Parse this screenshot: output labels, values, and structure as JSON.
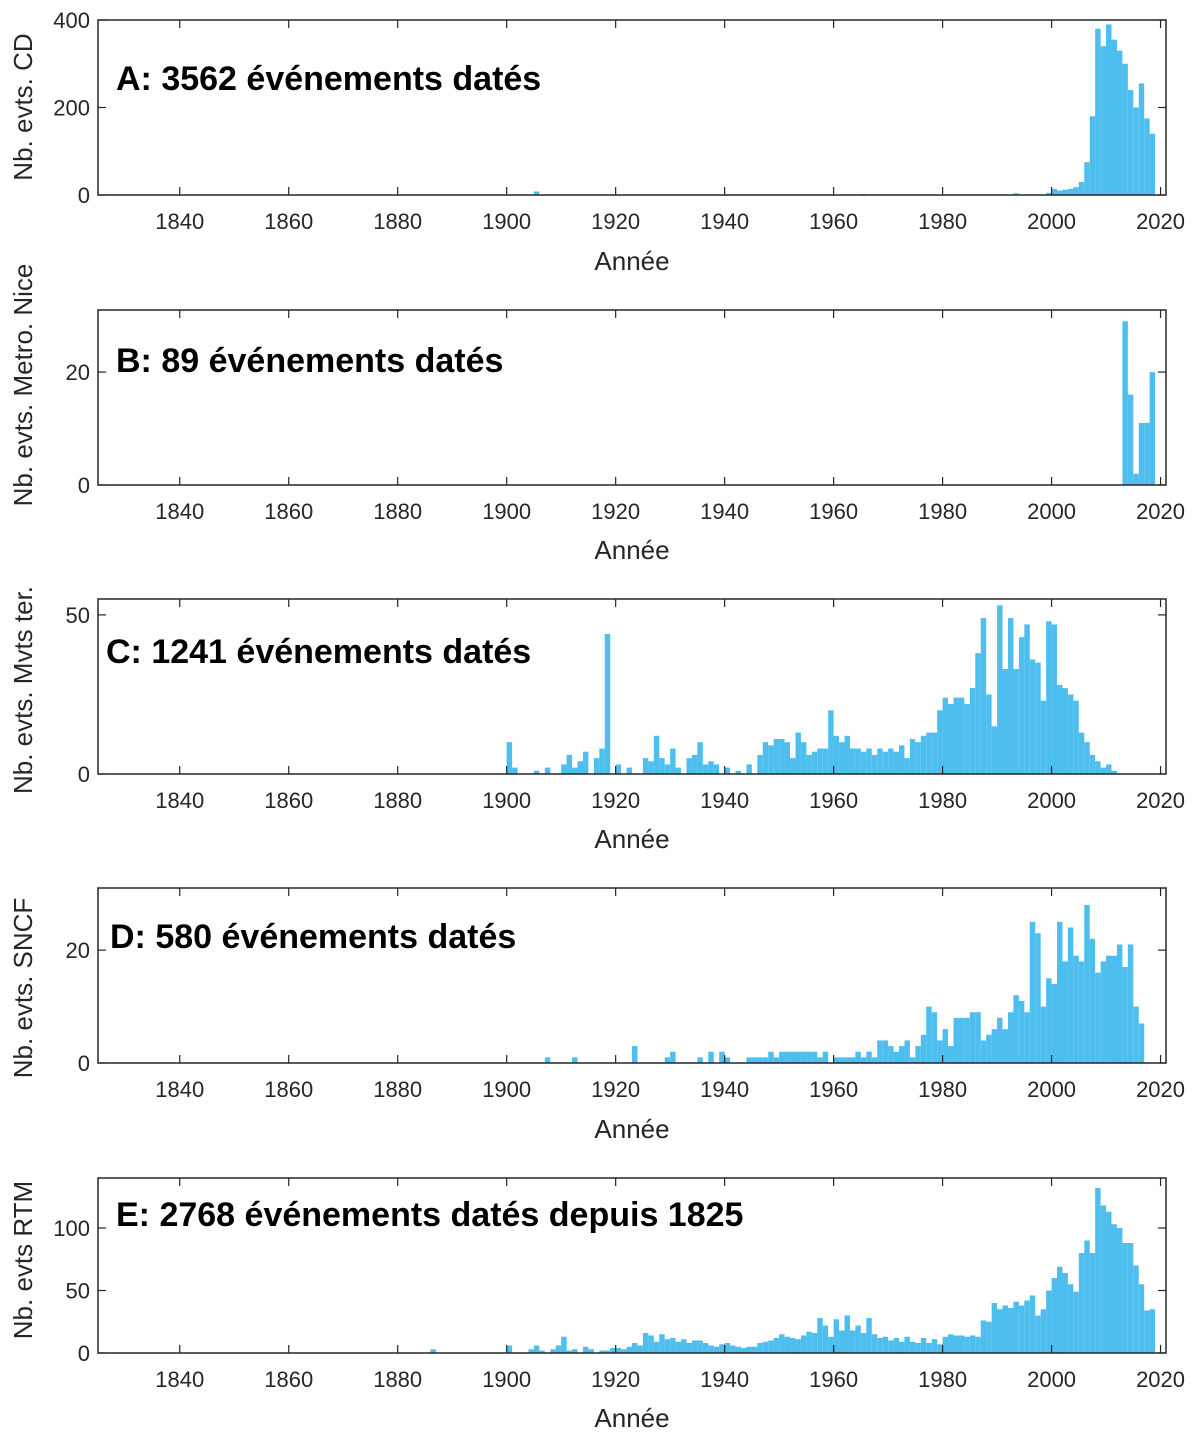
{
  "figure": {
    "bar_color": "#4dbeee",
    "axis_color": "#262626"
  },
  "chart_data": [
    {
      "id": "A",
      "type": "bar",
      "annotation": "A: 3562 événements datés",
      "ylabel": "Nb. evts. CD",
      "xlabel": "Année",
      "xlim": [
        1825,
        2021
      ],
      "ylim": [
        0,
        400
      ],
      "yticks": [
        0,
        200,
        400
      ],
      "xticks": [
        1840,
        1860,
        1880,
        1900,
        1920,
        1940,
        1960,
        1980,
        2000,
        2020
      ],
      "bins": [
        [
          1905,
          8
        ],
        [
          1965,
          2
        ],
        [
          1993,
          4
        ],
        [
          1999,
          5
        ],
        [
          2000,
          14
        ],
        [
          2001,
          10
        ],
        [
          2002,
          12
        ],
        [
          2003,
          14
        ],
        [
          2004,
          18
        ],
        [
          2005,
          30
        ],
        [
          2006,
          75
        ],
        [
          2007,
          180
        ],
        [
          2008,
          380
        ],
        [
          2009,
          340
        ],
        [
          2010,
          390
        ],
        [
          2011,
          355
        ],
        [
          2012,
          330
        ],
        [
          2013,
          300
        ],
        [
          2014,
          240
        ],
        [
          2015,
          200
        ],
        [
          2016,
          255
        ],
        [
          2017,
          175
        ],
        [
          2018,
          140
        ]
      ]
    },
    {
      "id": "B",
      "type": "bar",
      "annotation": "B: 89 événements datés",
      "ylabel": "Nb. evts. Metro. Nice",
      "xlabel": "Année",
      "xlim": [
        1825,
        2021
      ],
      "ylim": [
        0,
        31
      ],
      "yticks": [
        0,
        20
      ],
      "xticks": [
        1840,
        1860,
        1880,
        1900,
        1920,
        1940,
        1960,
        1980,
        2000,
        2020
      ],
      "bins": [
        [
          2013,
          29
        ],
        [
          2014,
          16
        ],
        [
          2015,
          2
        ],
        [
          2016,
          11
        ],
        [
          2017,
          11
        ],
        [
          2018,
          20
        ]
      ]
    },
    {
      "id": "C",
      "type": "bar",
      "annotation": "C: 1241 événements datés",
      "ylabel": "Nb. evts. Mvts ter.",
      "xlabel": "Année",
      "xlim": [
        1825,
        2021
      ],
      "ylim": [
        0,
        55
      ],
      "yticks": [
        0,
        50
      ],
      "xticks": [
        1840,
        1860,
        1880,
        1900,
        1920,
        1940,
        1960,
        1980,
        2000,
        2020
      ],
      "bins": [
        [
          1900,
          10
        ],
        [
          1901,
          2
        ],
        [
          1905,
          1
        ],
        [
          1907,
          2
        ],
        [
          1910,
          3
        ],
        [
          1911,
          6
        ],
        [
          1912,
          2
        ],
        [
          1913,
          4
        ],
        [
          1914,
          7
        ],
        [
          1916,
          5
        ],
        [
          1917,
          8
        ],
        [
          1918,
          44
        ],
        [
          1920,
          3
        ],
        [
          1922,
          2
        ],
        [
          1925,
          5
        ],
        [
          1926,
          4
        ],
        [
          1927,
          12
        ],
        [
          1928,
          5
        ],
        [
          1929,
          3
        ],
        [
          1930,
          8
        ],
        [
          1931,
          2
        ],
        [
          1933,
          5
        ],
        [
          1934,
          6
        ],
        [
          1935,
          10
        ],
        [
          1936,
          3
        ],
        [
          1937,
          4
        ],
        [
          1938,
          3
        ],
        [
          1940,
          2
        ],
        [
          1942,
          1
        ],
        [
          1944,
          3
        ],
        [
          1946,
          6
        ],
        [
          1947,
          10
        ],
        [
          1948,
          9
        ],
        [
          1949,
          11
        ],
        [
          1950,
          11
        ],
        [
          1951,
          10
        ],
        [
          1952,
          5
        ],
        [
          1953,
          13
        ],
        [
          1954,
          10
        ],
        [
          1955,
          6
        ],
        [
          1956,
          7
        ],
        [
          1957,
          8
        ],
        [
          1958,
          8
        ],
        [
          1959,
          20
        ],
        [
          1960,
          12
        ],
        [
          1961,
          10
        ],
        [
          1962,
          12
        ],
        [
          1963,
          8
        ],
        [
          1964,
          8
        ],
        [
          1965,
          7
        ],
        [
          1966,
          8
        ],
        [
          1967,
          6
        ],
        [
          1968,
          8
        ],
        [
          1969,
          7
        ],
        [
          1970,
          8
        ],
        [
          1971,
          7
        ],
        [
          1972,
          9
        ],
        [
          1973,
          5
        ],
        [
          1974,
          11
        ],
        [
          1975,
          10
        ],
        [
          1976,
          12
        ],
        [
          1977,
          13
        ],
        [
          1978,
          13
        ],
        [
          1979,
          20
        ],
        [
          1980,
          24
        ],
        [
          1981,
          22
        ],
        [
          1982,
          24
        ],
        [
          1983,
          24
        ],
        [
          1984,
          22
        ],
        [
          1985,
          27
        ],
        [
          1986,
          38
        ],
        [
          1987,
          49
        ],
        [
          1988,
          25
        ],
        [
          1989,
          15
        ],
        [
          1990,
          53
        ],
        [
          1991,
          33
        ],
        [
          1992,
          49
        ],
        [
          1993,
          33
        ],
        [
          1994,
          43
        ],
        [
          1995,
          47
        ],
        [
          1996,
          36
        ],
        [
          1997,
          35
        ],
        [
          1998,
          23
        ],
        [
          1999,
          48
        ],
        [
          2000,
          47
        ],
        [
          2001,
          28
        ],
        [
          2002,
          27
        ],
        [
          2003,
          25
        ],
        [
          2004,
          23
        ],
        [
          2005,
          13
        ],
        [
          2006,
          10
        ],
        [
          2007,
          6
        ],
        [
          2008,
          4
        ],
        [
          2009,
          2
        ],
        [
          2010,
          3
        ],
        [
          2011,
          1
        ]
      ]
    },
    {
      "id": "D",
      "type": "bar",
      "annotation": "D: 580 événements datés",
      "ylabel": "Nb. evts. SNCF",
      "xlabel": "Année",
      "xlim": [
        1825,
        2021
      ],
      "ylim": [
        0,
        31
      ],
      "yticks": [
        0,
        20
      ],
      "xticks": [
        1840,
        1860,
        1880,
        1900,
        1920,
        1940,
        1960,
        1980,
        2000,
        2020
      ],
      "bins": [
        [
          1907,
          1
        ],
        [
          1912,
          1
        ],
        [
          1923,
          3
        ],
        [
          1929,
          1
        ],
        [
          1930,
          2
        ],
        [
          1935,
          1
        ],
        [
          1937,
          2
        ],
        [
          1939,
          2
        ],
        [
          1940,
          1
        ],
        [
          1944,
          1
        ],
        [
          1945,
          1
        ],
        [
          1946,
          1
        ],
        [
          1947,
          1
        ],
        [
          1948,
          2
        ],
        [
          1949,
          1
        ],
        [
          1950,
          2
        ],
        [
          1951,
          2
        ],
        [
          1952,
          2
        ],
        [
          1953,
          2
        ],
        [
          1954,
          2
        ],
        [
          1955,
          2
        ],
        [
          1956,
          2
        ],
        [
          1957,
          1
        ],
        [
          1958,
          2
        ],
        [
          1960,
          1
        ],
        [
          1961,
          1
        ],
        [
          1962,
          1
        ],
        [
          1963,
          1
        ],
        [
          1964,
          2
        ],
        [
          1965,
          1
        ],
        [
          1966,
          2
        ],
        [
          1967,
          1
        ],
        [
          1968,
          4
        ],
        [
          1969,
          4
        ],
        [
          1970,
          3
        ],
        [
          1971,
          2
        ],
        [
          1972,
          3
        ],
        [
          1973,
          4
        ],
        [
          1974,
          1
        ],
        [
          1975,
          3
        ],
        [
          1976,
          5
        ],
        [
          1977,
          10
        ],
        [
          1978,
          9
        ],
        [
          1979,
          4
        ],
        [
          1980,
          6
        ],
        [
          1981,
          3
        ],
        [
          1982,
          8
        ],
        [
          1983,
          8
        ],
        [
          1984,
          8
        ],
        [
          1985,
          9
        ],
        [
          1986,
          9
        ],
        [
          1987,
          4
        ],
        [
          1988,
          5
        ],
        [
          1989,
          6
        ],
        [
          1990,
          8
        ],
        [
          1991,
          6
        ],
        [
          1992,
          9
        ],
        [
          1993,
          12
        ],
        [
          1994,
          11
        ],
        [
          1995,
          9
        ],
        [
          1996,
          25
        ],
        [
          1997,
          23
        ],
        [
          1998,
          10
        ],
        [
          1999,
          15
        ],
        [
          2000,
          14
        ],
        [
          2001,
          25
        ],
        [
          2002,
          18
        ],
        [
          2003,
          24
        ],
        [
          2004,
          19
        ],
        [
          2005,
          18
        ],
        [
          2006,
          28
        ],
        [
          2007,
          22
        ],
        [
          2008,
          16
        ],
        [
          2009,
          18
        ],
        [
          2010,
          19
        ],
        [
          2011,
          19
        ],
        [
          2012,
          21
        ],
        [
          2013,
          17
        ],
        [
          2014,
          21
        ],
        [
          2015,
          10
        ],
        [
          2016,
          7
        ]
      ]
    },
    {
      "id": "E",
      "type": "bar",
      "annotation": "E: 2768 événements datés depuis 1825",
      "ylabel": "Nb. evts RTM",
      "xlabel": "Année",
      "xlim": [
        1825,
        2021
      ],
      "ylim": [
        0,
        140
      ],
      "yticks": [
        0,
        50,
        100
      ],
      "xticks": [
        1840,
        1860,
        1880,
        1900,
        1920,
        1940,
        1960,
        1980,
        2000,
        2020
      ],
      "bins": [
        [
          1886,
          3
        ],
        [
          1900,
          6
        ],
        [
          1904,
          3
        ],
        [
          1905,
          6
        ],
        [
          1906,
          2
        ],
        [
          1908,
          3
        ],
        [
          1909,
          6
        ],
        [
          1910,
          13
        ],
        [
          1911,
          2
        ],
        [
          1912,
          3
        ],
        [
          1914,
          5
        ],
        [
          1915,
          3
        ],
        [
          1917,
          2
        ],
        [
          1918,
          2
        ],
        [
          1919,
          4
        ],
        [
          1920,
          4
        ],
        [
          1921,
          3
        ],
        [
          1922,
          5
        ],
        [
          1923,
          8
        ],
        [
          1924,
          6
        ],
        [
          1925,
          16
        ],
        [
          1926,
          14
        ],
        [
          1927,
          9
        ],
        [
          1928,
          15
        ],
        [
          1929,
          11
        ],
        [
          1930,
          12
        ],
        [
          1931,
          9
        ],
        [
          1932,
          11
        ],
        [
          1933,
          8
        ],
        [
          1934,
          10
        ],
        [
          1935,
          10
        ],
        [
          1936,
          8
        ],
        [
          1937,
          6
        ],
        [
          1938,
          5
        ],
        [
          1939,
          7
        ],
        [
          1940,
          8
        ],
        [
          1941,
          6
        ],
        [
          1942,
          5
        ],
        [
          1943,
          4
        ],
        [
          1944,
          5
        ],
        [
          1945,
          5
        ],
        [
          1946,
          8
        ],
        [
          1947,
          9
        ],
        [
          1948,
          10
        ],
        [
          1949,
          12
        ],
        [
          1950,
          15
        ],
        [
          1951,
          13
        ],
        [
          1952,
          12
        ],
        [
          1953,
          11
        ],
        [
          1954,
          14
        ],
        [
          1955,
          17
        ],
        [
          1956,
          16
        ],
        [
          1957,
          28
        ],
        [
          1958,
          22
        ],
        [
          1959,
          13
        ],
        [
          1960,
          27
        ],
        [
          1961,
          18
        ],
        [
          1962,
          30
        ],
        [
          1963,
          18
        ],
        [
          1964,
          22
        ],
        [
          1965,
          16
        ],
        [
          1966,
          28
        ],
        [
          1967,
          15
        ],
        [
          1968,
          12
        ],
        [
          1969,
          13
        ],
        [
          1970,
          10
        ],
        [
          1971,
          12
        ],
        [
          1972,
          9
        ],
        [
          1973,
          13
        ],
        [
          1974,
          9
        ],
        [
          1975,
          8
        ],
        [
          1976,
          12
        ],
        [
          1977,
          8
        ],
        [
          1978,
          11
        ],
        [
          1979,
          7
        ],
        [
          1980,
          13
        ],
        [
          1981,
          15
        ],
        [
          1982,
          14
        ],
        [
          1983,
          14
        ],
        [
          1984,
          13
        ],
        [
          1985,
          14
        ],
        [
          1986,
          13
        ],
        [
          1987,
          26
        ],
        [
          1988,
          25
        ],
        [
          1989,
          40
        ],
        [
          1990,
          35
        ],
        [
          1991,
          38
        ],
        [
          1992,
          36
        ],
        [
          1993,
          41
        ],
        [
          1994,
          38
        ],
        [
          1995,
          42
        ],
        [
          1996,
          46
        ],
        [
          1997,
          30
        ],
        [
          1998,
          35
        ],
        [
          1999,
          50
        ],
        [
          2000,
          60
        ],
        [
          2001,
          69
        ],
        [
          2002,
          64
        ],
        [
          2003,
          55
        ],
        [
          2004,
          49
        ],
        [
          2005,
          80
        ],
        [
          2006,
          90
        ],
        [
          2007,
          80
        ],
        [
          2008,
          132
        ],
        [
          2009,
          118
        ],
        [
          2010,
          113
        ],
        [
          2011,
          103
        ],
        [
          2012,
          100
        ],
        [
          2013,
          88
        ],
        [
          2014,
          88
        ],
        [
          2015,
          70
        ],
        [
          2016,
          55
        ],
        [
          2017,
          34
        ],
        [
          2018,
          35
        ]
      ]
    }
  ]
}
